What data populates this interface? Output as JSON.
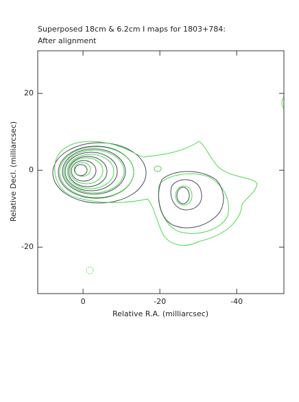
{
  "chart_data": {
    "type": "contour",
    "title": "Superposed 18cm & 6.2cm I maps for 1803+784:",
    "subtitle": "After alignment",
    "x_label": "Relative R.A. (milliarcsec)",
    "y_label": "Relative Decl. (milliarcsec)",
    "xlim": [
      11.8,
      -52.3
    ],
    "ylim": [
      -32.1,
      31.1
    ],
    "xticks": [
      0,
      -20,
      -40
    ],
    "yticks": [
      -20,
      0,
      20
    ]
  }
}
